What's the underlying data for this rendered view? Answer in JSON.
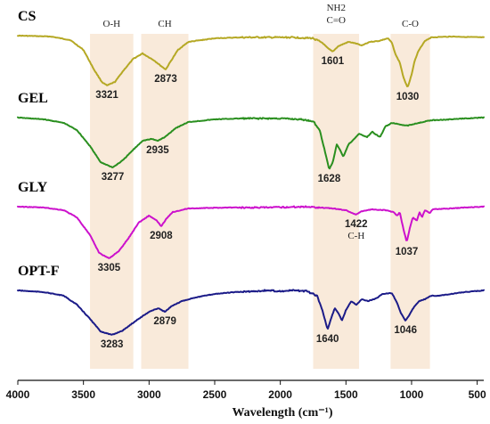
{
  "chart_data": {
    "type": "line",
    "xlabel": "Wavelength (cm⁻¹)",
    "xlim": [
      4000,
      450
    ],
    "x_ticks": [
      4000,
      3500,
      3000,
      2500,
      2000,
      1500,
      1000,
      500
    ],
    "bands": [
      {
        "label": "O-H",
        "range": [
          3450,
          3120
        ]
      },
      {
        "label": "CH",
        "range": [
          3060,
          2700
        ]
      },
      {
        "label": "NH2\nC=O",
        "range": [
          1750,
          1400
        ]
      },
      {
        "label": "C-O",
        "range": [
          1160,
          860
        ]
      }
    ],
    "series": [
      {
        "name": "CS",
        "color": "#b5a824",
        "points": [
          [
            4000,
            0
          ],
          [
            3750,
            1
          ],
          [
            3600,
            5
          ],
          [
            3500,
            16
          ],
          [
            3420,
            38
          ],
          [
            3360,
            52
          ],
          [
            3321,
            56
          ],
          [
            3260,
            52
          ],
          [
            3200,
            40
          ],
          [
            3120,
            26
          ],
          [
            3050,
            20
          ],
          [
            2960,
            28
          ],
          [
            2910,
            34
          ],
          [
            2873,
            38
          ],
          [
            2840,
            30
          ],
          [
            2780,
            16
          ],
          [
            2700,
            7
          ],
          [
            2500,
            3
          ],
          [
            2300,
            2
          ],
          [
            2100,
            2
          ],
          [
            1900,
            2
          ],
          [
            1750,
            3
          ],
          [
            1680,
            8
          ],
          [
            1640,
            14
          ],
          [
            1601,
            18
          ],
          [
            1560,
            12
          ],
          [
            1480,
            7
          ],
          [
            1420,
            9
          ],
          [
            1380,
            11
          ],
          [
            1320,
            7
          ],
          [
            1250,
            6
          ],
          [
            1180,
            3
          ],
          [
            1150,
            8
          ],
          [
            1120,
            22
          ],
          [
            1090,
            30
          ],
          [
            1060,
            48
          ],
          [
            1030,
            58
          ],
          [
            1000,
            44
          ],
          [
            980,
            30
          ],
          [
            950,
            18
          ],
          [
            900,
            6
          ],
          [
            850,
            2
          ],
          [
            700,
            1
          ],
          [
            450,
            2
          ]
        ],
        "peaks": [
          {
            "x": 3321,
            "label": "3321"
          },
          {
            "x": 2873,
            "label": "2873"
          },
          {
            "x": 1601,
            "label": "1601"
          },
          {
            "x": 1030,
            "label": "1030"
          }
        ]
      },
      {
        "name": "GEL",
        "color": "#2a8f1f",
        "points": [
          [
            4000,
            0
          ],
          [
            3800,
            2
          ],
          [
            3650,
            6
          ],
          [
            3550,
            14
          ],
          [
            3450,
            32
          ],
          [
            3370,
            50
          ],
          [
            3277,
            56
          ],
          [
            3200,
            48
          ],
          [
            3120,
            36
          ],
          [
            3050,
            26
          ],
          [
            2980,
            24
          ],
          [
            2935,
            26
          ],
          [
            2880,
            22
          ],
          [
            2800,
            12
          ],
          [
            2700,
            5
          ],
          [
            2500,
            2
          ],
          [
            2300,
            1
          ],
          [
            2000,
            1
          ],
          [
            1850,
            2
          ],
          [
            1750,
            4
          ],
          [
            1700,
            14
          ],
          [
            1660,
            38
          ],
          [
            1628,
            58
          ],
          [
            1600,
            50
          ],
          [
            1570,
            30
          ],
          [
            1545,
            36
          ],
          [
            1520,
            44
          ],
          [
            1480,
            30
          ],
          [
            1450,
            26
          ],
          [
            1400,
            18
          ],
          [
            1340,
            22
          ],
          [
            1300,
            16
          ],
          [
            1240,
            22
          ],
          [
            1200,
            10
          ],
          [
            1150,
            6
          ],
          [
            1080,
            8
          ],
          [
            1030,
            9
          ],
          [
            950,
            6
          ],
          [
            850,
            3
          ],
          [
            700,
            2
          ],
          [
            600,
            1
          ],
          [
            450,
            0
          ]
        ],
        "peaks": [
          {
            "x": 3277,
            "label": "3277"
          },
          {
            "x": 2935,
            "label": "2935"
          },
          {
            "x": 1628,
            "label": "1628"
          }
        ]
      },
      {
        "name": "GLY",
        "color": "#cc11cc",
        "points": [
          [
            4000,
            0
          ],
          [
            3800,
            1
          ],
          [
            3650,
            4
          ],
          [
            3550,
            12
          ],
          [
            3450,
            32
          ],
          [
            3380,
            52
          ],
          [
            3305,
            58
          ],
          [
            3230,
            50
          ],
          [
            3150,
            34
          ],
          [
            3080,
            18
          ],
          [
            3000,
            10
          ],
          [
            2940,
            16
          ],
          [
            2908,
            22
          ],
          [
            2870,
            14
          ],
          [
            2820,
            6
          ],
          [
            2700,
            2
          ],
          [
            2400,
            1
          ],
          [
            2100,
            1
          ],
          [
            1800,
            0
          ],
          [
            1600,
            2
          ],
          [
            1500,
            4
          ],
          [
            1422,
            9
          ],
          [
            1380,
            5
          ],
          [
            1300,
            3
          ],
          [
            1200,
            4
          ],
          [
            1140,
            6
          ],
          [
            1110,
            10
          ],
          [
            1090,
            6
          ],
          [
            1070,
            20
          ],
          [
            1037,
            40
          ],
          [
            1010,
            22
          ],
          [
            990,
            12
          ],
          [
            960,
            16
          ],
          [
            940,
            6
          ],
          [
            920,
            12
          ],
          [
            900,
            4
          ],
          [
            860,
            7
          ],
          [
            840,
            3
          ],
          [
            700,
            2
          ],
          [
            600,
            1
          ],
          [
            450,
            0
          ]
        ],
        "peaks": [
          {
            "x": 3305,
            "label": "3305"
          },
          {
            "x": 2908,
            "label": "2908"
          },
          {
            "x": 1422,
            "label": "1422",
            "sub": "C-H"
          },
          {
            "x": 1037,
            "label": "1037"
          }
        ]
      },
      {
        "name": "OPT-F",
        "color": "#1b1b88",
        "points": [
          [
            4000,
            0
          ],
          [
            3800,
            2
          ],
          [
            3650,
            6
          ],
          [
            3550,
            16
          ],
          [
            3450,
            32
          ],
          [
            3370,
            46
          ],
          [
            3283,
            50
          ],
          [
            3200,
            45
          ],
          [
            3100,
            34
          ],
          [
            3000,
            24
          ],
          [
            2930,
            20
          ],
          [
            2879,
            24
          ],
          [
            2830,
            18
          ],
          [
            2750,
            12
          ],
          [
            2650,
            8
          ],
          [
            2500,
            4
          ],
          [
            2350,
            2
          ],
          [
            2200,
            1
          ],
          [
            2100,
            0
          ],
          [
            2000,
            1
          ],
          [
            1900,
            0
          ],
          [
            1800,
            1
          ],
          [
            1720,
            6
          ],
          [
            1680,
            22
          ],
          [
            1640,
            44
          ],
          [
            1610,
            30
          ],
          [
            1585,
            20
          ],
          [
            1555,
            26
          ],
          [
            1530,
            34
          ],
          [
            1500,
            22
          ],
          [
            1460,
            12
          ],
          [
            1420,
            16
          ],
          [
            1380,
            10
          ],
          [
            1330,
            12
          ],
          [
            1270,
            9
          ],
          [
            1220,
            4
          ],
          [
            1150,
            3
          ],
          [
            1110,
            14
          ],
          [
            1080,
            26
          ],
          [
            1046,
            34
          ],
          [
            1010,
            26
          ],
          [
            980,
            18
          ],
          [
            940,
            12
          ],
          [
            900,
            10
          ],
          [
            850,
            6
          ],
          [
            800,
            6
          ],
          [
            700,
            4
          ],
          [
            600,
            2
          ],
          [
            450,
            0
          ]
        ],
        "peaks": [
          {
            "x": 3283,
            "label": "3283"
          },
          {
            "x": 2879,
            "label": "2879"
          },
          {
            "x": 1640,
            "label": "1640"
          },
          {
            "x": 1046,
            "label": "1046"
          }
        ]
      }
    ]
  }
}
